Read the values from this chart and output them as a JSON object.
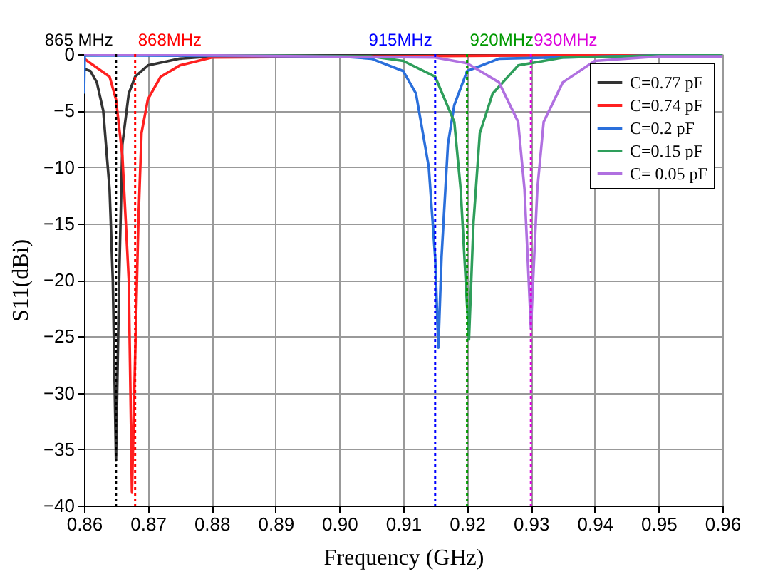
{
  "chart_data": {
    "type": "line",
    "xlabel": "Frequency (GHz)",
    "ylabel": "S11(dBi)",
    "xlim": [
      0.86,
      0.96
    ],
    "ylim": [
      -40,
      0
    ],
    "xticks": [
      0.86,
      0.87,
      0.88,
      0.89,
      {
        "value": 0.9,
        "label": "0.90"
      },
      0.91,
      0.92,
      0.93,
      0.94,
      0.95,
      0.96
    ],
    "yticks": [
      -40,
      -35,
      -30,
      -25,
      -20,
      -15,
      -10,
      -5,
      0
    ],
    "grid": true,
    "legend": "top right",
    "line_style": "solid",
    "marker": "none",
    "series": [
      {
        "name": "C=0.77 pF",
        "color": "#333333",
        "x": [
          0.86,
          0.861,
          0.862,
          0.863,
          0.864,
          0.8645,
          0.865,
          0.8655,
          0.866,
          0.867,
          0.868,
          0.87,
          0.875,
          0.88,
          0.9,
          0.96
        ],
        "values": [
          -1.3,
          -1.5,
          -2.5,
          -5,
          -12,
          -20,
          -36,
          -20,
          -8,
          -3.5,
          -2,
          -1,
          -0.4,
          -0.2,
          -0.1,
          -0.1
        ]
      },
      {
        "name": "C=0.74 pF",
        "color": "#ff2020",
        "x": [
          0.86,
          0.862,
          0.864,
          0.865,
          0.866,
          0.867,
          0.8675,
          0.8685,
          0.869,
          0.87,
          0.872,
          0.875,
          0.88,
          0.96
        ],
        "values": [
          -0.4,
          -1.2,
          -2,
          -4,
          -9,
          -20,
          -38.8,
          -15,
          -7,
          -4,
          -2,
          -1,
          -0.3,
          0
        ]
      },
      {
        "name": "C=0.2 pF",
        "color": "#2a6fdb",
        "x": [
          0.86,
          0.8601,
          0.9,
          0.905,
          0.91,
          0.912,
          0.914,
          0.915,
          0.9155,
          0.916,
          0.917,
          0.918,
          0.92,
          0.925,
          0.96
        ],
        "values": [
          -3.5,
          -0.1,
          -0.2,
          -0.4,
          -1.5,
          -3.5,
          -10,
          -18,
          -26,
          -18,
          -8,
          -4.5,
          -1.5,
          -0.4,
          0
        ]
      },
      {
        "name": "C=0.15 pF",
        "color": "#2e9e5b",
        "x": [
          0.86,
          0.905,
          0.91,
          0.915,
          0.918,
          0.919,
          0.9203,
          0.921,
          0.922,
          0.924,
          0.928,
          0.935,
          0.96
        ],
        "values": [
          0,
          -0.2,
          -0.6,
          -2,
          -6,
          -12,
          -25.3,
          -15,
          -7,
          -3.5,
          -1,
          -0.3,
          0
        ]
      },
      {
        "name": "C= 0.05 pF",
        "color": "#b070e0",
        "x": [
          0.86,
          0.915,
          0.92,
          0.925,
          0.928,
          0.929,
          0.93,
          0.931,
          0.932,
          0.935,
          0.94,
          0.95,
          0.96
        ],
        "values": [
          0,
          -0.3,
          -0.8,
          -2.5,
          -6,
          -12,
          -24.3,
          -12,
          -6,
          -2.5,
          -0.6,
          -0.2,
          -0.2
        ]
      }
    ],
    "ref_lines": [
      {
        "axis": "x",
        "value": 0.865,
        "label": "865 MHz",
        "color": "#000000",
        "line_style": "dotted"
      },
      {
        "axis": "x",
        "value": 0.868,
        "label": "868MHz",
        "color": "#ff0000",
        "line_style": "dotted"
      },
      {
        "axis": "x",
        "value": 0.915,
        "label": "915MHz",
        "color": "#0000ff",
        "line_style": "dotted"
      },
      {
        "axis": "x",
        "value": 0.92,
        "label": "920MHz",
        "color": "#009900",
        "line_style": "dotted"
      },
      {
        "axis": "x",
        "value": 0.93,
        "label": "930MHz",
        "color": "#dd00dd",
        "line_style": "dotted"
      }
    ]
  }
}
